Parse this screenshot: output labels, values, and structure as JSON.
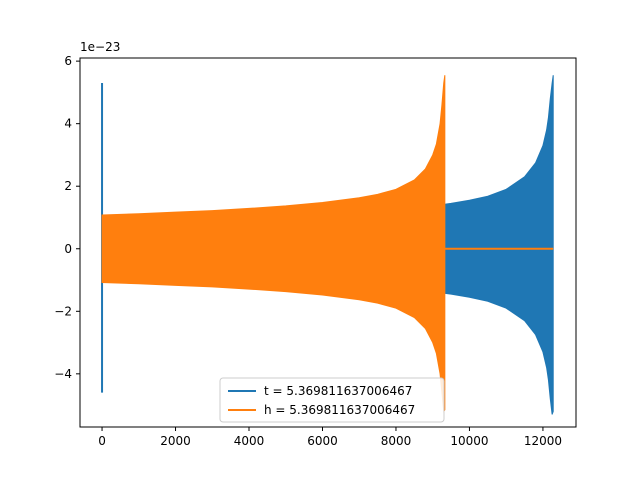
{
  "chart_data": {
    "type": "line",
    "title": "",
    "xlabel": "",
    "ylabel": "",
    "offset_text": "1e−23",
    "xlim": [
      -600,
      12900
    ],
    "ylim": [
      -5.7,
      6.1
    ],
    "y_scale_exponent": -23,
    "grid": false,
    "legend_position": "lower center",
    "x_ticks": [
      {
        "value": 0,
        "label": "0"
      },
      {
        "value": 2000,
        "label": "2000"
      },
      {
        "value": 4000,
        "label": "4000"
      },
      {
        "value": 6000,
        "label": "6000"
      },
      {
        "value": 8000,
        "label": "8000"
      },
      {
        "value": 10000,
        "label": "10000"
      },
      {
        "value": 12000,
        "label": "12000"
      }
    ],
    "y_ticks": [
      {
        "value": -4,
        "label": "−4"
      },
      {
        "value": -2,
        "label": "−2"
      },
      {
        "value": 0,
        "label": "0"
      },
      {
        "value": 2,
        "label": "2"
      },
      {
        "value": 4,
        "label": "4"
      },
      {
        "value": 6,
        "label": "6"
      }
    ],
    "series": [
      {
        "name": "t = 5.369811637006467",
        "color": "#1f77b4",
        "fill": true,
        "spike": {
          "x": 0,
          "min": -4.6,
          "max": 5.3
        },
        "envelope": {
          "x": [
            9300,
            9500,
            10000,
            10500,
            11000,
            11500,
            11800,
            12000,
            12100,
            12150,
            12200,
            12250,
            12280
          ],
          "upper": [
            1.42,
            1.45,
            1.55,
            1.68,
            1.9,
            2.3,
            2.75,
            3.3,
            3.8,
            4.2,
            4.8,
            5.3,
            5.55
          ],
          "lower": [
            -1.42,
            -1.45,
            -1.55,
            -1.68,
            -1.9,
            -2.3,
            -2.75,
            -3.3,
            -3.8,
            -4.2,
            -4.8,
            -5.3,
            -5.2
          ]
        }
      },
      {
        "name": "h = 5.369811637006467",
        "color": "#ff7f0e",
        "fill": true,
        "spike": null,
        "envelope": {
          "x": [
            0,
            1000,
            2000,
            3000,
            4000,
            5000,
            6000,
            7000,
            7500,
            8000,
            8500,
            8800,
            9000,
            9100,
            9200,
            9250,
            9300,
            9330
          ],
          "upper": [
            1.08,
            1.12,
            1.17,
            1.22,
            1.29,
            1.37,
            1.48,
            1.63,
            1.74,
            1.9,
            2.2,
            2.55,
            3.0,
            3.35,
            4.0,
            4.6,
            5.3,
            5.55
          ],
          "lower": [
            -1.08,
            -1.12,
            -1.17,
            -1.22,
            -1.29,
            -1.37,
            -1.48,
            -1.63,
            -1.74,
            -1.9,
            -2.2,
            -2.55,
            -3.0,
            -3.35,
            -4.0,
            -4.6,
            -5.2,
            -5.15
          ]
        },
        "tail": {
          "x": [
            9330,
            12280
          ],
          "y": 0
        }
      }
    ]
  }
}
